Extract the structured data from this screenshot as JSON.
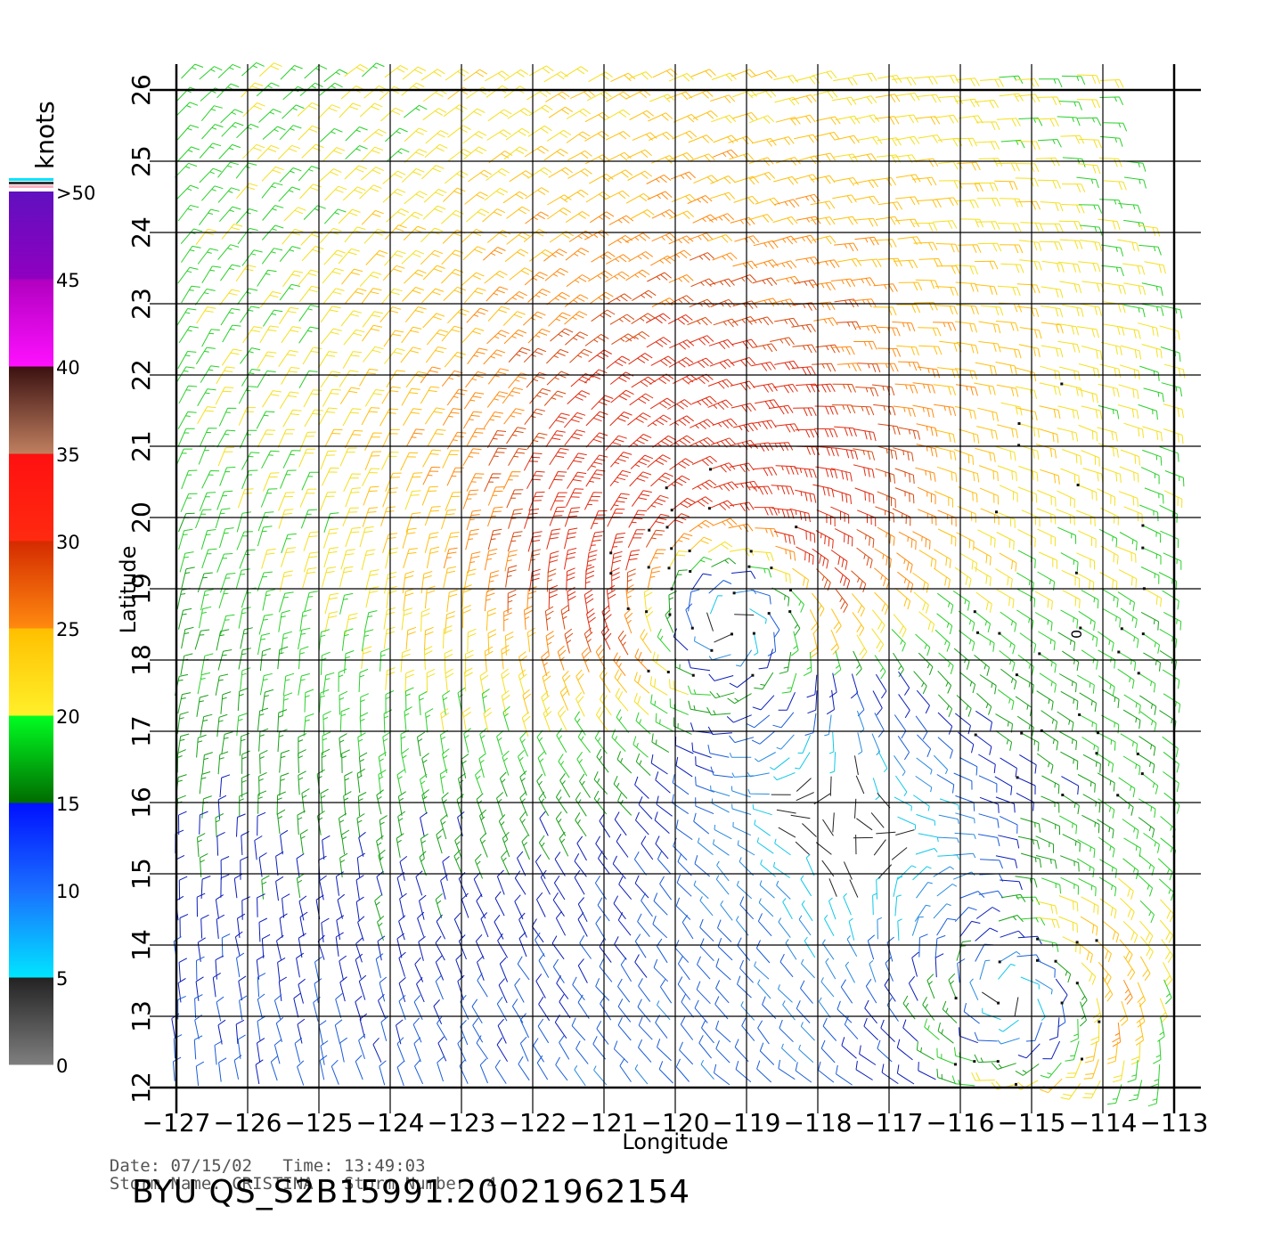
{
  "colorbar": {
    "unit_label": "knots",
    "tick_labels": [
      ">50",
      "45",
      "40",
      "35",
      "30",
      "25",
      "20",
      "15",
      "10",
      "5",
      "0"
    ],
    "colors": {
      "0-5": [
        "#7f7f7f",
        "#222222"
      ],
      "5-10": [
        "#00e5ff",
        "#1a6fff"
      ],
      "10-15": [
        "#1a6fff",
        "#0010ff"
      ],
      "15-20": [
        "#006b00",
        "#00ff22"
      ],
      "20-25": [
        "#fff02a",
        "#ffbf00"
      ],
      "25-30": [
        "#ff8a10",
        "#d42a00"
      ],
      "30-35": [
        "#ff2a10",
        "#ff1010"
      ],
      "35-40": [
        "#c08060",
        "#3a1010"
      ],
      "40-45": [
        "#ff10ff",
        "#b000c0"
      ],
      "45-50": [
        "#9000c0",
        "#6010c0"
      ]
    }
  },
  "map": {
    "x_axis_label": "Longitude",
    "y_axis_label": "Latitude",
    "lon_ticks": [
      -127,
      -126,
      -125,
      -124,
      -123,
      -122,
      -121,
      -120,
      -119,
      -118,
      -117,
      -116,
      -115,
      -114,
      -113
    ],
    "lat_ticks": [
      12,
      13,
      14,
      15,
      16,
      17,
      18,
      19,
      20,
      21,
      22,
      23,
      24,
      25,
      26
    ],
    "lon_range": [
      -127,
      -112.5
    ],
    "lat_range": [
      12,
      26.2
    ],
    "center_marker": "0",
    "center_marker_lon": -114.3,
    "center_marker_lat": 18.3
  },
  "storm_field": {
    "description_unit": "knots",
    "centers": [
      {
        "lon": -119.5,
        "lat": 19.1,
        "max_speed": 30
      },
      {
        "lon": -115.0,
        "lat": 13.2,
        "max_speed": 27
      }
    ]
  },
  "info": {
    "date_label": "Date:",
    "date": "07/15/02",
    "time_label": "Time:",
    "time": "13:49:03",
    "storm_name_label": "Storm Name:",
    "storm_name": "CRISTINA",
    "storm_number_label": "Storm Number:",
    "storm_number": "4",
    "product_id": "BYU QS_S2B15991.20021962154"
  }
}
